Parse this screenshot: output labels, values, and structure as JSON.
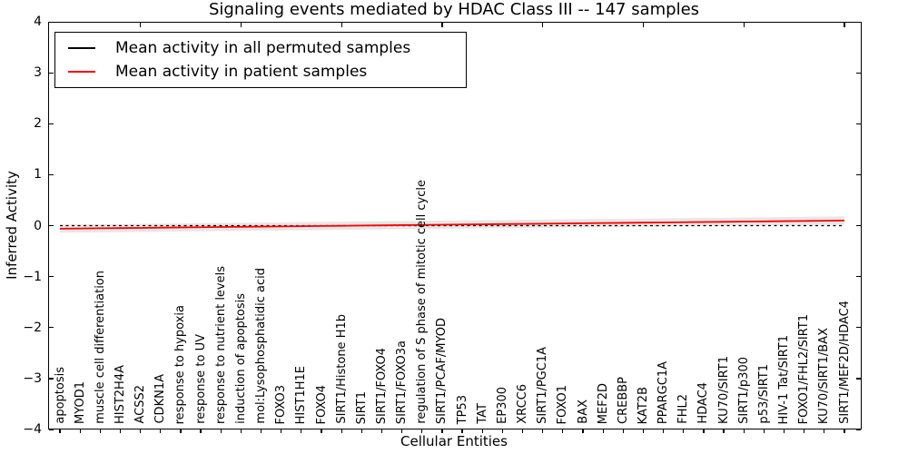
{
  "figure": {
    "title": "Signaling events mediated by HDAC Class III -- 147 samples"
  },
  "legend": {
    "items": [
      {
        "label": "Mean activity in all permuted samples",
        "color": "#000000"
      },
      {
        "label": "Mean activity in patient samples",
        "color": "#ff0000"
      }
    ]
  },
  "axes": {
    "ylabel": "Inferred Activity",
    "xlabel": "Cellular Entities",
    "ytick_labels": [
      "4",
      "3",
      "2",
      "1",
      "0",
      "−1",
      "−2",
      "−3",
      "−4"
    ]
  },
  "chart_data": {
    "type": "line",
    "title": "Signaling events mediated by HDAC Class III -- 147 samples",
    "xlabel": "Cellular Entities",
    "ylabel": "Inferred Activity",
    "ylim": [
      -4,
      4
    ],
    "yticks": [
      4,
      3,
      2,
      1,
      0,
      -1,
      -2,
      -3,
      -4
    ],
    "grid": false,
    "legend_position": "upper left",
    "categories": [
      "apoptosis",
      "MYOD1",
      "muscle cell differentiation",
      "HIST2H4A",
      "ACSS2",
      "CDKN1A",
      "response to hypoxia",
      "response to UV",
      "response to nutrient levels",
      "induction of apoptosis",
      "mol:Lysophosphatidic acid",
      "FOXO3",
      "HIST1H1E",
      "FOXO4",
      "SIRT1/Histone H1b",
      "SIRT1",
      "SIRT1/FOXO4",
      "SIRT1/FOXO3a",
      "regulation of S phase of mitotic cell cycle",
      "SIRT1/PCAF/MYOD",
      "TP53",
      "TAT",
      "EP300",
      "XRCC6",
      "SIRT1/PGC1A",
      "FOXO1",
      "BAX",
      "MEF2D",
      "CREBBP",
      "KAT2B",
      "PPARGC1A",
      "FHL2",
      "HDAC4",
      "KU70/SIRT1",
      "SIRT1/p300",
      "p53/SIRT1",
      "HIV-1 Tat/SIRT1",
      "FOXO1/FHL2/SIRT1",
      "KU70/SIRT1/BAX",
      "SIRT1/MEF2D/HDAC4"
    ],
    "series": [
      {
        "name": "Mean activity in all permuted samples",
        "color": "#000000",
        "style": "dashed",
        "values": [
          0.0,
          0.0,
          0.0,
          0.0,
          0.0,
          0.0,
          0.0,
          0.0,
          0.0,
          0.0,
          0.0,
          0.0,
          0.0,
          0.0,
          0.0,
          0.0,
          0.0,
          0.0,
          0.0,
          0.0,
          0.0,
          0.0,
          0.0,
          0.0,
          0.0,
          0.0,
          0.0,
          0.0,
          0.0,
          0.0,
          0.0,
          0.0,
          0.0,
          0.0,
          0.0,
          0.0,
          0.0,
          0.0,
          0.0,
          0.0
        ]
      },
      {
        "name": "Mean activity in patient samples",
        "color": "#ff0000",
        "style": "solid",
        "values": [
          -0.06,
          -0.056,
          -0.052,
          -0.048,
          -0.044,
          -0.039,
          -0.035,
          -0.031,
          -0.027,
          -0.023,
          -0.019,
          -0.015,
          -0.011,
          -0.007,
          -0.003,
          0.002,
          0.006,
          0.01,
          0.014,
          0.018,
          0.022,
          0.026,
          0.03,
          0.034,
          0.038,
          0.043,
          0.047,
          0.051,
          0.055,
          0.059,
          0.063,
          0.067,
          0.071,
          0.075,
          0.08,
          0.084,
          0.088,
          0.092,
          0.096,
          0.1
        ]
      }
    ],
    "shading": {
      "description": "light gray band around mean lines",
      "halfwidth": 0.08,
      "color": "#bbbbbb"
    }
  }
}
